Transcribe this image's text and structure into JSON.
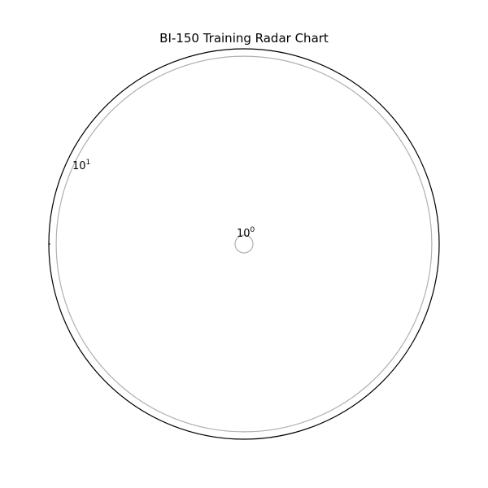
{
  "chart_data": {
    "type": "radar",
    "title": "BI-150 Training Radar Chart",
    "radial_scale": "log",
    "radial_ticks": [
      {
        "base": "10",
        "exp": "0",
        "value": 1
      },
      {
        "base": "10",
        "exp": "1",
        "value": 10
      }
    ],
    "rlim": [
      1,
      11
    ],
    "grid": true,
    "series": [],
    "colors": {
      "frame": "#000000",
      "grid": "#b0b0b0",
      "text": "#000000"
    }
  }
}
